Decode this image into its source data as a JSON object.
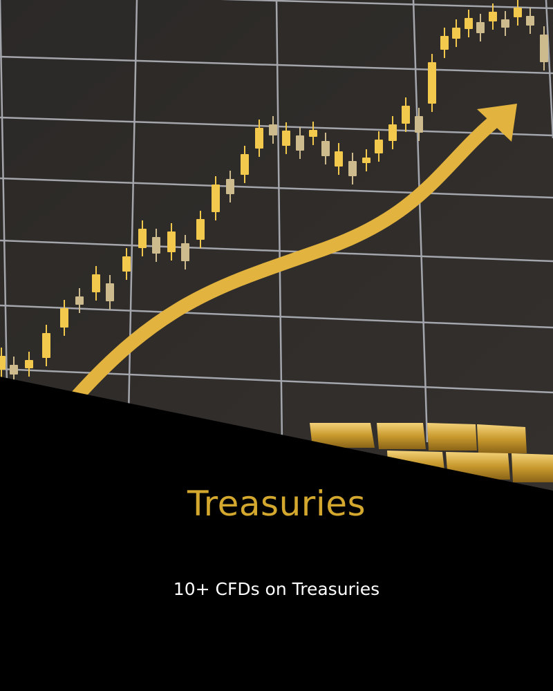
{
  "card": {
    "title": "Treasuries",
    "subtitle": "10+ CFDs on Treasuries",
    "title_color": "#D4A82E",
    "subtitle_color": "#FFFFFF",
    "background_color": "#000000"
  },
  "hero_image": {
    "subject": "gold-candlestick-chart-with-rising-arrow-and-gold-bars",
    "background_color": "#2E2B2A",
    "grid_color": "#B9BCC4",
    "bull_candle_color": "#F2C94C",
    "bear_candle_color": "#CDBB8E",
    "arrow_color": "#E2B33E",
    "gold_bar_color": "#C99A2E"
  }
}
